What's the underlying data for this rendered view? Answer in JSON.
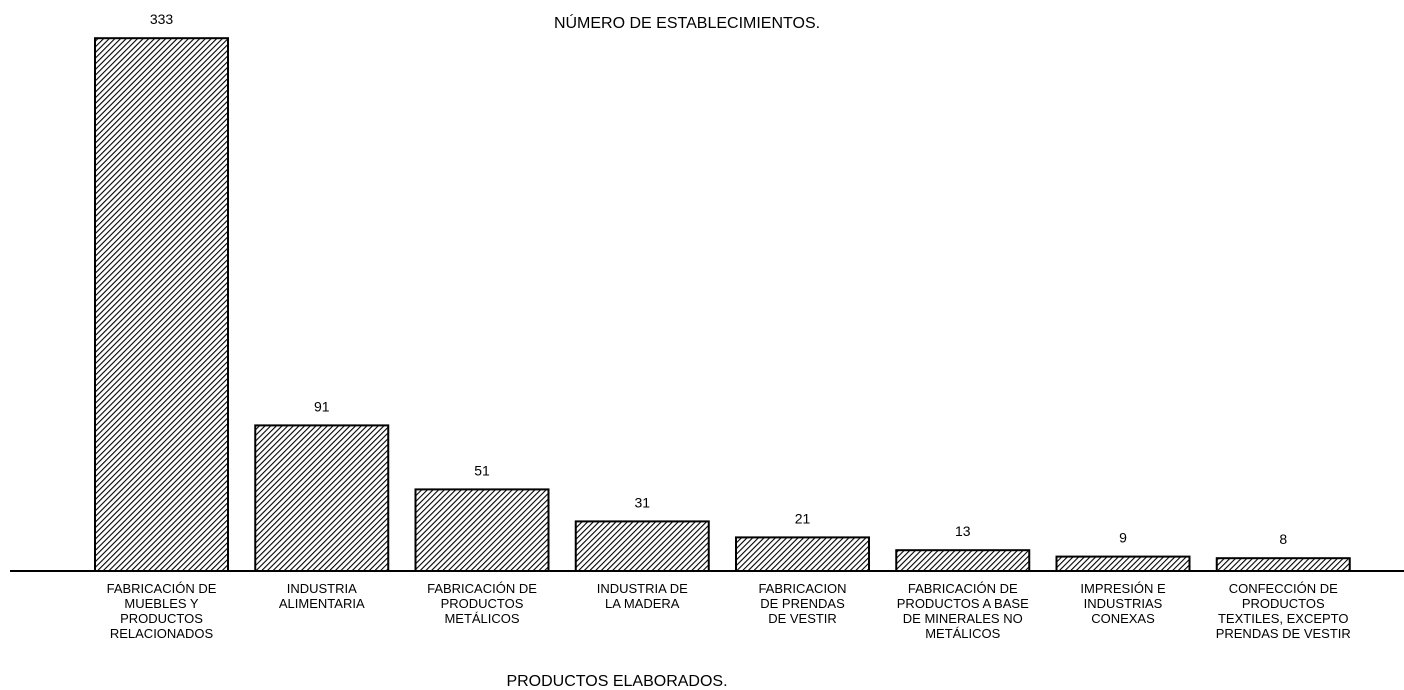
{
  "chart_data": {
    "type": "bar",
    "title": "NÚMERO DE ESTABLECIMIENTOS.",
    "x_label": "PRODUCTOS ELABORADOS.",
    "categories": [
      "FABRICACIÓN DE\nMUEBLES Y\nPRODUCTOS\nRELACIONADOS",
      "INDUSTRIA\nALIMENTARIA",
      "FABRICACIÓN DE\nPRODUCTOS\nMETÁLICOS",
      "INDUSTRIA DE\nLA MADERA",
      "FABRICACION\nDE PRENDAS\nDE VESTIR",
      "FABRICACIÓN DE\nPRODUCTOS A BASE\nDE MINERALES NO\nMETÁLICOS",
      "IMPRESIÓN E\nINDUSTRIAS\nCONEXAS",
      "CONFECCIÓN DE\nPRODUCTOS\nTEXTILES, EXCEPTO\nPRENDAS DE VESTIR"
    ],
    "values": [
      333,
      91,
      51,
      31,
      21,
      13,
      9,
      8
    ],
    "color": "#000000",
    "ylim": [
      0,
      350
    ]
  }
}
